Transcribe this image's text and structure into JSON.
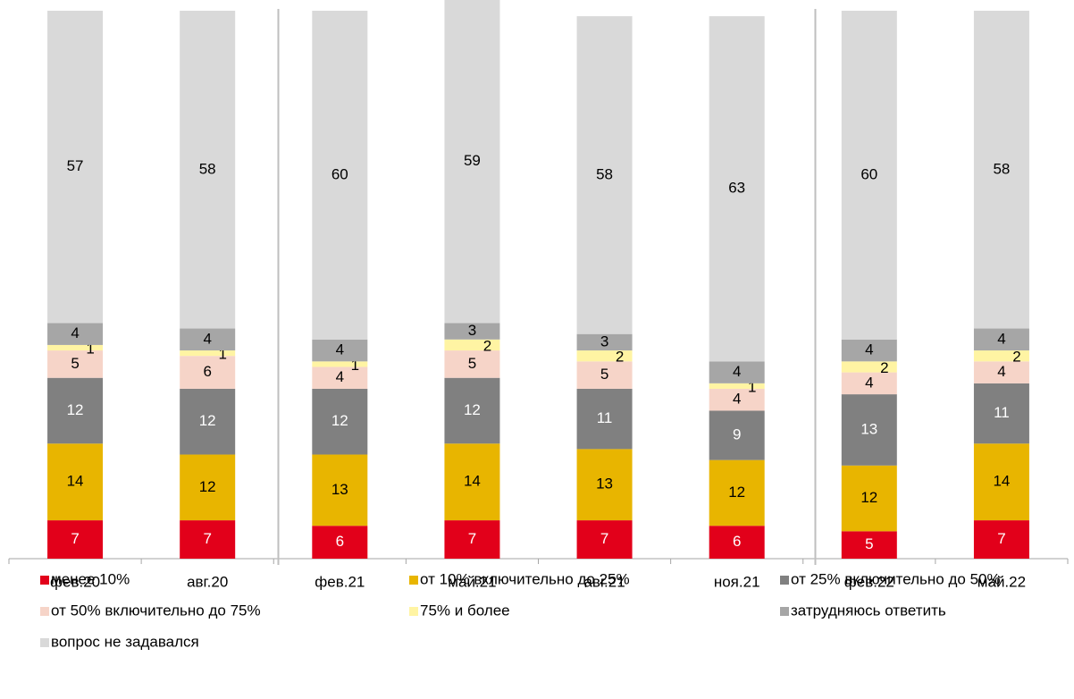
{
  "chart_data": {
    "type": "stacked_bar",
    "categories": [
      "фев.20",
      "авг.20",
      "фев.21",
      "май.21",
      "авг.21",
      "ноя.21",
      "фев.22",
      "май.22"
    ],
    "ylim": [
      0,
      100
    ],
    "series": [
      {
        "name": "менее 10%",
        "color": "#e2001a",
        "label_color": "#ffffff",
        "values": [
          7,
          7,
          6,
          7,
          7,
          6,
          5,
          7
        ]
      },
      {
        "name": "от 10% включительно до 25%",
        "color": "#e8b500",
        "label_color": "#000000",
        "values": [
          14,
          12,
          13,
          14,
          13,
          12,
          12,
          14
        ]
      },
      {
        "name": "от 25% включительно до 50%",
        "color": "#808080",
        "label_color": "#ffffff",
        "values": [
          12,
          12,
          12,
          12,
          11,
          9,
          13,
          11
        ]
      },
      {
        "name": "от 50% включительно до 75%",
        "color": "#f6d4c8",
        "label_color": "#000000",
        "values": [
          5,
          6,
          4,
          5,
          5,
          4,
          4,
          4
        ]
      },
      {
        "name": "75% и более",
        "color": "#fff4a3",
        "label_color": "#000000",
        "values": [
          1,
          1,
          1,
          2,
          2,
          1,
          2,
          2
        ]
      },
      {
        "name": "затрудняюсь ответить",
        "color": "#a6a6a6",
        "label_color": "#000000",
        "values": [
          4,
          4,
          4,
          3,
          3,
          4,
          4,
          4
        ]
      },
      {
        "name": "вопрос не задавался",
        "color": "#d9d9d9",
        "label_color": "#000000",
        "values": [
          57,
          58,
          60,
          59,
          58,
          63,
          60,
          58
        ]
      }
    ]
  }
}
